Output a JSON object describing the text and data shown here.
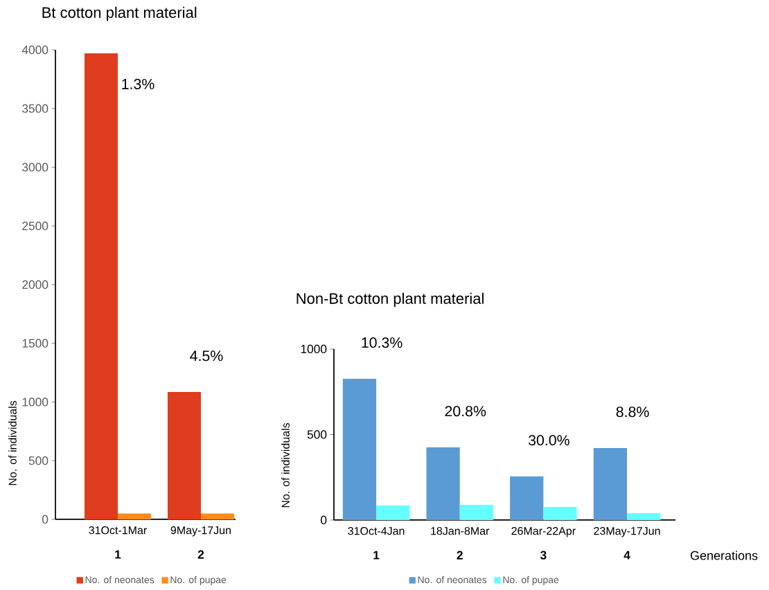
{
  "chart_data": [
    {
      "type": "bar",
      "title": "Bt cotton plant material",
      "ylabel": "No. of individuals",
      "categories": [
        "31Oct-1Mar",
        "9May-17Jun"
      ],
      "series": [
        {
          "name": "No. of neonates",
          "color": "#e03c1e",
          "values": [
            3970,
            1085
          ]
        },
        {
          "name": "No. of pupae",
          "color": "#ff8c1a",
          "values": [
            50,
            50
          ]
        }
      ],
      "ylim": [
        0,
        4000
      ],
      "yticks": [
        0,
        500,
        1000,
        1500,
        2000,
        2500,
        3000,
        3500,
        4000
      ],
      "legend": "bottom",
      "annotations": [
        "1.3%",
        "4.5%",
        "1",
        "2"
      ]
    },
    {
      "type": "bar",
      "title": "Non-Bt cotton plant material",
      "ylabel": "No. of individuals",
      "xlabel": "Generations",
      "categories": [
        "31Oct-4Jan",
        "18Jan-8Mar",
        "26Mar-22Apr",
        "23May-17Jun"
      ],
      "series": [
        {
          "name": "No. of neonates",
          "color": "#5b9bd5",
          "values": [
            826,
            425,
            255,
            421
          ]
        },
        {
          "name": "No. of pupae",
          "color": "#66ffff",
          "values": [
            85,
            89,
            77,
            40
          ]
        }
      ],
      "ylim": [
        0,
        1000
      ],
      "yticks": [
        0,
        500,
        1000
      ],
      "legend": "bottom",
      "annotations": [
        "10.3%",
        "20.8%",
        "30.0%",
        "8.8%",
        "1",
        "2",
        "3",
        "4"
      ]
    }
  ]
}
